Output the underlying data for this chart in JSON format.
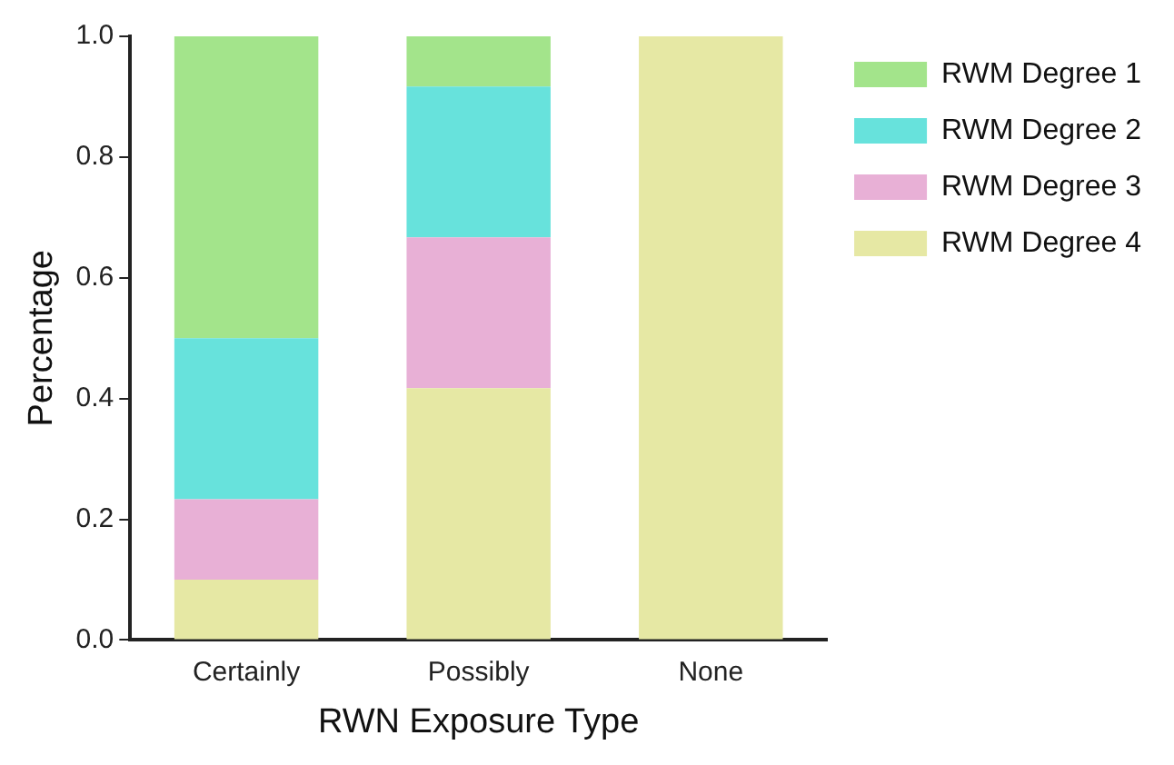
{
  "chart_data": {
    "type": "bar",
    "stacked": true,
    "xlabel": "RWN Exposure Type",
    "ylabel": "Percentage",
    "categories": [
      "Certainly",
      "Possibly",
      "None"
    ],
    "series": [
      {
        "name": "RWM Degree 4",
        "color": "#e6e8a4",
        "values": [
          0.1,
          0.417,
          1.0
        ]
      },
      {
        "name": "RWM Degree 3",
        "color": "#e8b0d6",
        "values": [
          0.133,
          0.25,
          0
        ]
      },
      {
        "name": "RWM Degree 2",
        "color": "#67e2dc",
        "values": [
          0.267,
          0.25,
          0
        ]
      },
      {
        "name": "RWM Degree 1",
        "color": "#a3e48b",
        "values": [
          0.5,
          0.083,
          0
        ]
      }
    ],
    "ylim": [
      0,
      1
    ],
    "yticks": [
      {
        "value": 0,
        "label": "0.0"
      },
      {
        "value": 0.2,
        "label": "0.2"
      },
      {
        "value": 0.4,
        "label": "0.4"
      },
      {
        "value": 0.6,
        "label": "0.6"
      },
      {
        "value": 0.8,
        "label": "0.8"
      },
      {
        "value": 1,
        "label": "1.0"
      }
    ],
    "grid": false,
    "legend": "top right"
  }
}
